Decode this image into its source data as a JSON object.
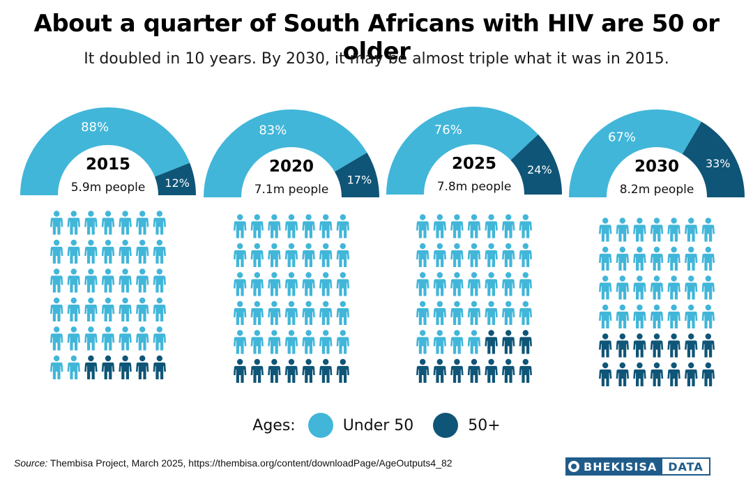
{
  "title": "About a quarter of South Africans with HIV are 50 or older",
  "subtitle": "It doubled in 10 years. By 2030, it may be almost triple what it was in 2015.",
  "colors": {
    "under50": "#41b6d9",
    "over50": "#0f5577"
  },
  "chart_data": {
    "type": "donut-gauge-pictogram",
    "series": [
      {
        "name": "Under 50",
        "color": "#41b6d9"
      },
      {
        "name": "50+",
        "color": "#0f5577"
      }
    ],
    "panels": [
      {
        "year": "2015",
        "people": "5.9m people",
        "under50_pct": 88,
        "over50_pct": 12,
        "under50_label": "88%",
        "over50_label": "12%",
        "icons_under50": 37,
        "icons_over50": 5
      },
      {
        "year": "2020",
        "people": "7.1m people",
        "under50_pct": 83,
        "over50_pct": 17,
        "under50_label": "83%",
        "over50_label": "17%",
        "icons_under50": 35,
        "icons_over50": 7
      },
      {
        "year": "2025",
        "people": "7.8m people",
        "under50_pct": 76,
        "over50_pct": 24,
        "under50_label": "76%",
        "over50_label": "24%",
        "icons_under50": 32,
        "icons_over50": 10
      },
      {
        "year": "2030",
        "people": "8.2m people",
        "under50_pct": 67,
        "over50_pct": 33,
        "under50_label": "67%",
        "over50_label": "33%",
        "icons_under50": 28,
        "icons_over50": 14
      }
    ]
  },
  "legend": {
    "label": "Ages:",
    "under50": "Under 50",
    "over50": "50+"
  },
  "source": {
    "label": "Source:",
    "text": "Thembisa Project, March 2025, https://thembisa.org/content/downloadPage/AgeOutputs4_82"
  },
  "logo": {
    "left": "BHEKISISA",
    "right": "DATA"
  }
}
